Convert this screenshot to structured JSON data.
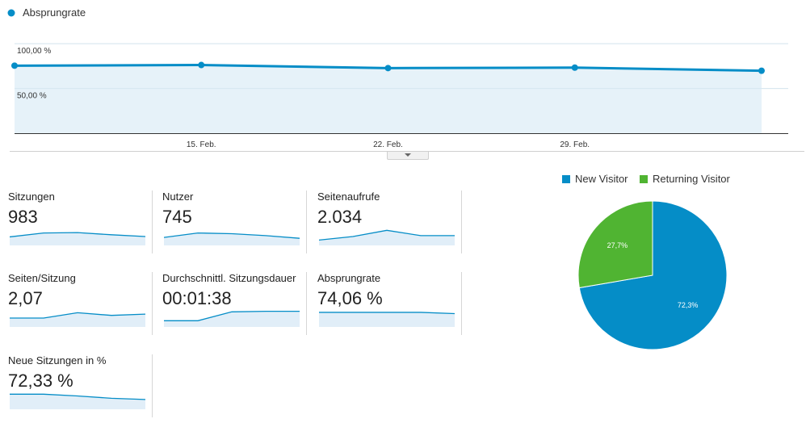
{
  "chart_data": [
    {
      "type": "area",
      "legend": [
        {
          "name": "Absprungrate",
          "color": "#058dc7"
        }
      ],
      "y_ticks": [
        "100,00 %",
        "50,00 %"
      ],
      "x_ticks": [
        "15. Feb.",
        "22. Feb.",
        "29. Feb."
      ],
      "ylim": [
        0,
        120
      ],
      "x_range": [
        "2016-02-08",
        "2016-03-08"
      ],
      "series": [
        {
          "name": "Absprungrate",
          "points": [
            {
              "x": "2016-02-08",
              "y": 75.5
            },
            {
              "x": "2016-02-15",
              "y": 76.2
            },
            {
              "x": "2016-02-22",
              "y": 72.8
            },
            {
              "x": "2016-02-29",
              "y": 73.3
            },
            {
              "x": "2016-03-07",
              "y": 69.8
            }
          ]
        }
      ],
      "grid": true
    },
    {
      "type": "pie",
      "legend_position": "top",
      "slices": [
        {
          "name": "New Visitor",
          "value": 72.3,
          "label": "72,3%",
          "color": "#058dc7"
        },
        {
          "name": "Returning Visitor",
          "value": 27.7,
          "label": "27,7%",
          "color": "#50b432"
        }
      ]
    }
  ],
  "metrics": [
    {
      "label": "Sitzungen",
      "value": "983",
      "spark": [
        0.48,
        0.7,
        0.72,
        0.6,
        0.5
      ]
    },
    {
      "label": "Nutzer",
      "value": "745",
      "spark": [
        0.45,
        0.7,
        0.66,
        0.55,
        0.4
      ]
    },
    {
      "label": "Seitenaufrufe",
      "value": "2.034",
      "spark": [
        0.3,
        0.5,
        0.85,
        0.55,
        0.55
      ]
    },
    {
      "label": "Seiten/Sitzung",
      "value": "2,07",
      "spark": [
        0.5,
        0.5,
        0.8,
        0.65,
        0.72
      ]
    },
    {
      "label": "Durchschnittl. Sitzungsdauer",
      "value": "00:01:38",
      "spark": [
        0.35,
        0.35,
        0.85,
        0.88,
        0.88
      ]
    },
    {
      "label": "Absprungrate",
      "value": "74,06 %",
      "spark": [
        0.82,
        0.82,
        0.82,
        0.82,
        0.75
      ]
    },
    {
      "label": "Neue Sitzungen in %",
      "value": "72,33 %",
      "spark": [
        0.85,
        0.85,
        0.75,
        0.62,
        0.55
      ]
    }
  ],
  "colors": {
    "line": "#058dc7",
    "fill": "#e6f2f9",
    "grid": "#e8e8e8",
    "spark_fill": "#e1eef8"
  }
}
